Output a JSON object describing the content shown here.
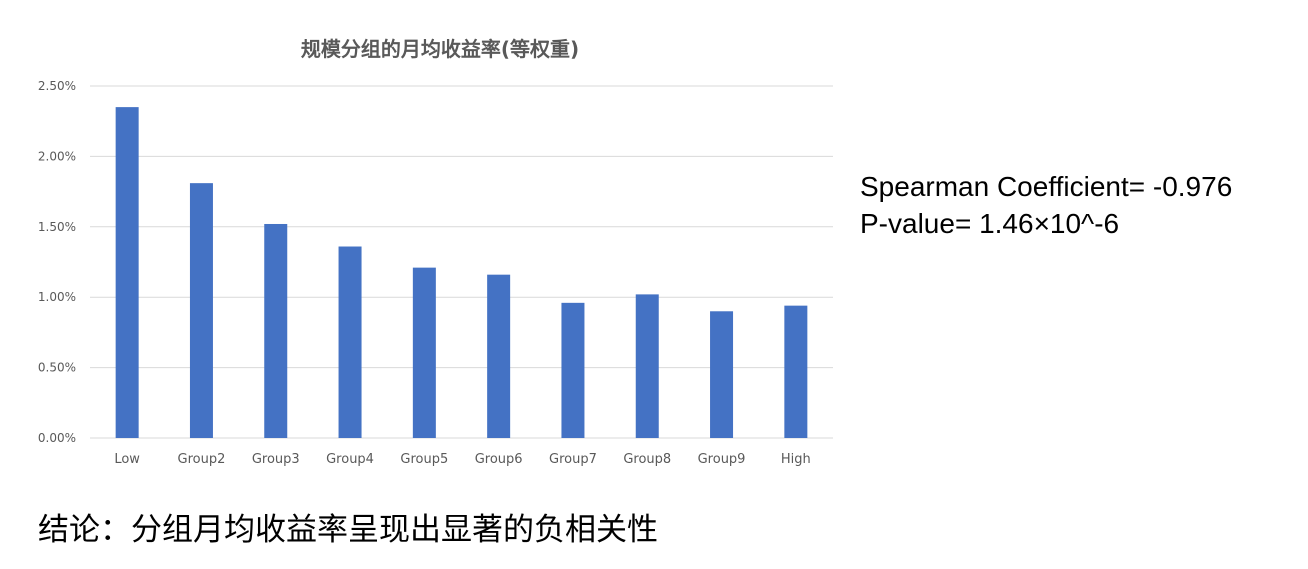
{
  "chart_data": {
    "type": "bar",
    "title": "规模分组的月均收益率(等权重)",
    "xlabel": "",
    "ylabel": "",
    "categories": [
      "Low",
      "Group2",
      "Group3",
      "Group4",
      "Group5",
      "Group6",
      "Group7",
      "Group8",
      "Group9",
      "High"
    ],
    "values": [
      2.35,
      1.81,
      1.52,
      1.36,
      1.21,
      1.16,
      0.96,
      1.02,
      0.9,
      0.94
    ],
    "value_unit": "%",
    "ylim": [
      0,
      2.5
    ],
    "yticks": [
      "0.00%",
      "0.50%",
      "1.00%",
      "1.50%",
      "2.00%",
      "2.50%"
    ],
    "ytick_values": [
      0,
      0.5,
      1.0,
      1.5,
      2.0,
      2.5
    ],
    "grid": true,
    "legend": "none",
    "bar_color": "#4472C4"
  },
  "stats": {
    "spearman": "Spearman Coefficient= -0.976",
    "pvalue": "P-value= 1.46×10^-6"
  },
  "conclusion": "结论：分组月均收益率呈现出显著的负相关性"
}
